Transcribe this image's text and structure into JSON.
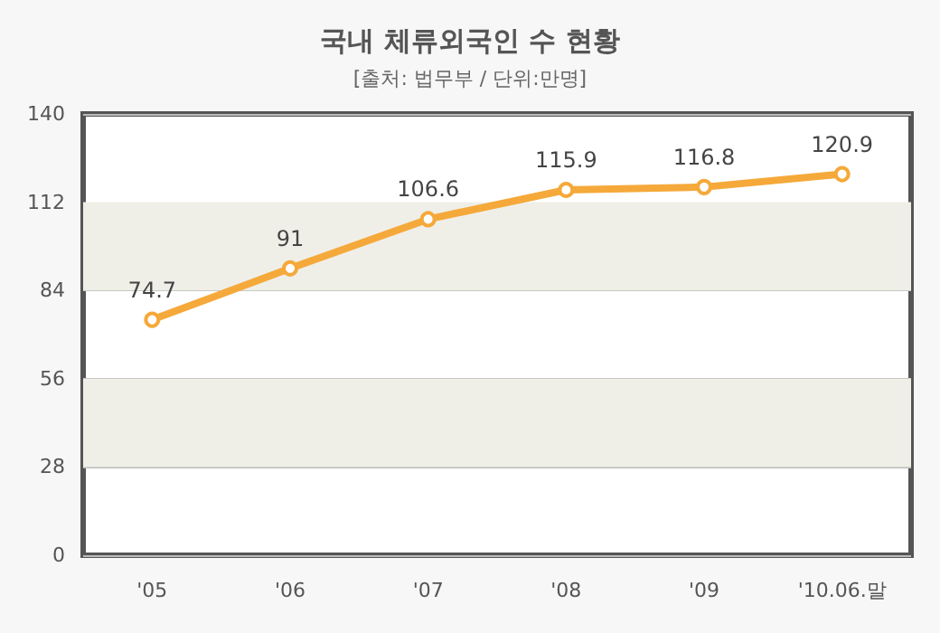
{
  "chart_data": {
    "type": "line",
    "title": "국내 체류외국인 수 현황",
    "subtitle": "[출처: 법무부 / 단위:만명]",
    "categories": [
      "'05",
      "'06",
      "'07",
      "'08",
      "'09",
      "'10.06.말"
    ],
    "series": [
      {
        "color": "#f5a93a",
        "values": [
          74.7,
          91,
          106.6,
          115.9,
          116.8,
          120.9
        ]
      }
    ],
    "ylim": [
      0,
      140
    ],
    "yticks": [
      0,
      28,
      56,
      84,
      112,
      140
    ],
    "bands": [
      {
        "axis": "y",
        "from": 28,
        "to": 56,
        "color": "#efefe8"
      },
      {
        "axis": "y",
        "from": 84,
        "to": 112,
        "color": "#efefe8"
      }
    ],
    "grid": "y",
    "data_labels": true,
    "marker": "circle",
    "line_style": "solid"
  }
}
